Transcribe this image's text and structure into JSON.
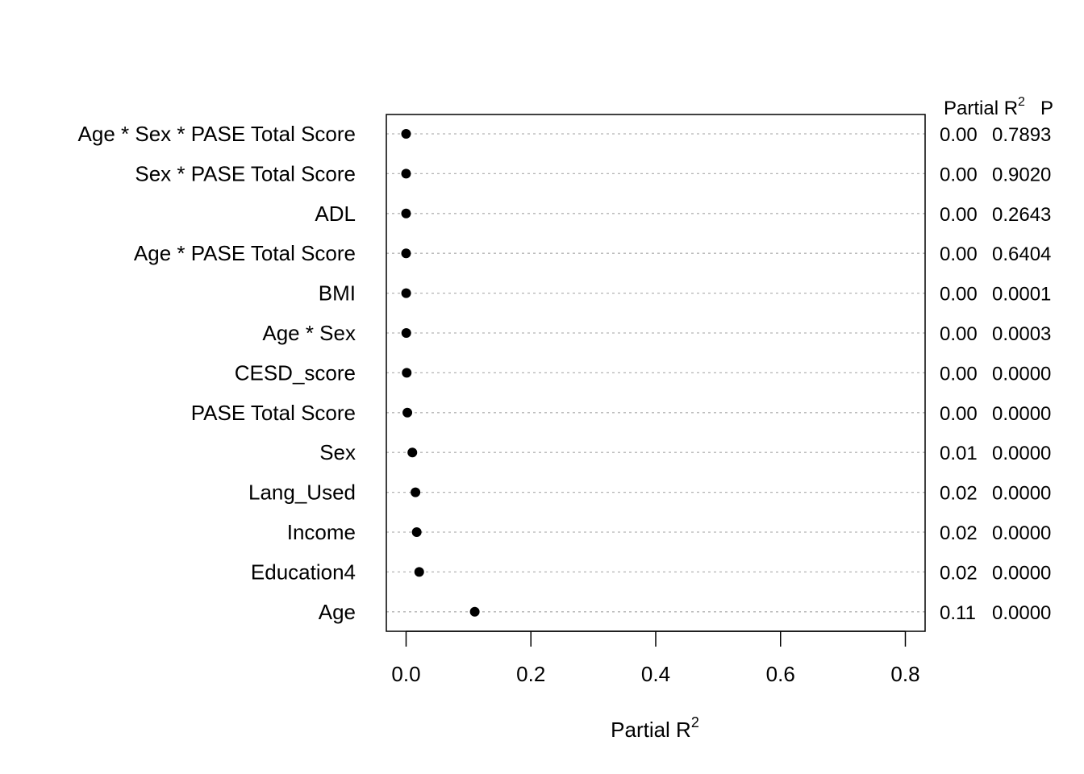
{
  "chart_data": {
    "type": "scatter",
    "xlabel": "Partial R",
    "xlabel_superscript": "2",
    "xlim": [
      -0.03,
      0.83
    ],
    "xticks": [
      0.0,
      0.2,
      0.4,
      0.6,
      0.8
    ],
    "xtick_labels": [
      "0.0",
      "0.2",
      "0.4",
      "0.6",
      "0.8"
    ],
    "grid": "horizontal-dotted",
    "point_color": "#000000",
    "grid_color": "#b3b3b3",
    "right_columns": {
      "header_r2": "Partial R",
      "header_r2_superscript": "2",
      "header_p": "P"
    },
    "rows": [
      {
        "label": "Age * Sex * PASE Total Score",
        "value": 0.0,
        "r2_text": "0.00",
        "p_text": "0.7893"
      },
      {
        "label": "Sex * PASE Total Score",
        "value": 0.0,
        "r2_text": "0.00",
        "p_text": "0.9020"
      },
      {
        "label": "ADL",
        "value": 0.0,
        "r2_text": "0.00",
        "p_text": "0.2643"
      },
      {
        "label": "Age * PASE Total Score",
        "value": 0.0,
        "r2_text": "0.00",
        "p_text": "0.6404"
      },
      {
        "label": "BMI",
        "value": 0.0001,
        "r2_text": "0.00",
        "p_text": "0.0001"
      },
      {
        "label": "Age * Sex",
        "value": 0.0003,
        "r2_text": "0.00",
        "p_text": "0.0003"
      },
      {
        "label": "CESD_score",
        "value": 0.001,
        "r2_text": "0.00",
        "p_text": "0.0000"
      },
      {
        "label": "PASE Total Score",
        "value": 0.002,
        "r2_text": "0.00",
        "p_text": "0.0000"
      },
      {
        "label": "Sex",
        "value": 0.01,
        "r2_text": "0.01",
        "p_text": "0.0000"
      },
      {
        "label": "Lang_Used",
        "value": 0.015,
        "r2_text": "0.02",
        "p_text": "0.0000"
      },
      {
        "label": "Income",
        "value": 0.017,
        "r2_text": "0.02",
        "p_text": "0.0000"
      },
      {
        "label": "Education4",
        "value": 0.021,
        "r2_text": "0.02",
        "p_text": "0.0000"
      },
      {
        "label": "Age",
        "value": 0.11,
        "r2_text": "0.11",
        "p_text": "0.0000"
      }
    ]
  }
}
